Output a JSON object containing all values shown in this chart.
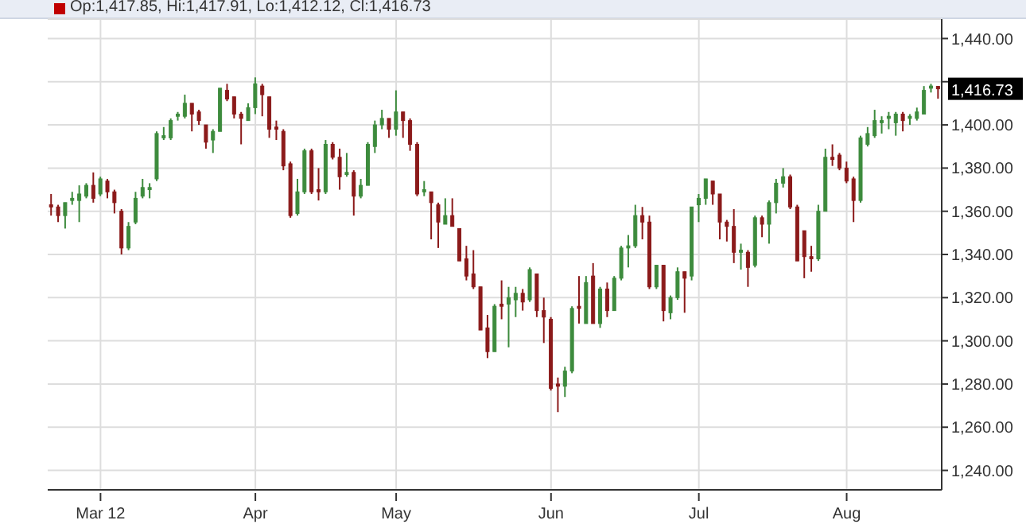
{
  "chart_data": {
    "type": "candlestick",
    "title": "Op:1,417.85, Hi:1,417.91, Lo:1,412.12, Cl:1,416.73",
    "categories": [
      null,
      null,
      null,
      null,
      null,
      null,
      null,
      "Mar 12",
      null,
      null,
      null,
      null,
      null,
      null,
      null,
      null,
      null,
      null,
      null,
      null,
      null,
      null,
      null,
      null,
      null,
      null,
      null,
      null,
      null,
      "Apr",
      null,
      null,
      null,
      null,
      null,
      null,
      null,
      null,
      null,
      null,
      null,
      null,
      null,
      null,
      null,
      null,
      null,
      null,
      null,
      "May",
      null,
      null,
      null,
      null,
      null,
      null,
      null,
      null,
      null,
      null,
      null,
      null,
      null,
      null,
      null,
      null,
      null,
      null,
      null,
      null,
      null,
      "Jun",
      null,
      null,
      null,
      null,
      null,
      null,
      null,
      null,
      null,
      null,
      null,
      null,
      null,
      null,
      null,
      null,
      null,
      null,
      null,
      null,
      "Jul",
      null,
      null,
      null,
      null,
      null,
      null,
      null,
      null,
      null,
      null,
      null,
      null,
      null,
      null,
      null,
      null,
      null,
      null,
      null,
      null,
      "Aug",
      null,
      null,
      null,
      null,
      null,
      null,
      null,
      null,
      null,
      null,
      null,
      null,
      null
    ],
    "ohlc": [
      [
        1363,
        1368,
        1358,
        1362
      ],
      [
        1362,
        1363,
        1355,
        1358
      ],
      [
        1358,
        1364,
        1352,
        1364
      ],
      [
        1365,
        1369,
        1363,
        1366
      ],
      [
        1365,
        1372,
        1355,
        1368
      ],
      [
        1367,
        1373,
        1366,
        1372
      ],
      [
        1372,
        1378,
        1364,
        1366
      ],
      [
        1368,
        1376,
        1367,
        1375
      ],
      [
        1374,
        1375,
        1366,
        1369
      ],
      [
        1369,
        1370,
        1359,
        1364
      ],
      [
        1360,
        1361,
        1340,
        1343
      ],
      [
        1343,
        1355,
        1342,
        1353
      ],
      [
        1355,
        1369,
        1354,
        1366
      ],
      [
        1367,
        1375,
        1366,
        1371
      ],
      [
        1370,
        1373,
        1366,
        1371
      ],
      [
        1375,
        1397,
        1374,
        1396
      ],
      [
        1394,
        1399,
        1393,
        1395
      ],
      [
        1394,
        1403,
        1393,
        1402
      ],
      [
        1404,
        1406,
        1402,
        1405
      ],
      [
        1404,
        1414,
        1403,
        1410
      ],
      [
        1410,
        1410,
        1397,
        1405
      ],
      [
        1406,
        1407,
        1400,
        1402
      ],
      [
        1400,
        1400,
        1389,
        1392
      ],
      [
        1393,
        1398,
        1387,
        1397
      ],
      [
        1397,
        1417,
        1397,
        1417
      ],
      [
        1416,
        1419,
        1411,
        1412
      ],
      [
        1413,
        1413,
        1403,
        1405
      ],
      [
        1405,
        1406,
        1391,
        1403
      ],
      [
        1402,
        1410,
        1402,
        1408
      ],
      [
        1408,
        1422,
        1405,
        1419
      ],
      [
        1418,
        1419,
        1404,
        1414
      ],
      [
        1413,
        1413,
        1394,
        1398
      ],
      [
        1399,
        1402,
        1393,
        1398
      ],
      [
        1397,
        1398,
        1379,
        1381
      ],
      [
        1382,
        1383,
        1357,
        1358
      ],
      [
        1359,
        1375,
        1358,
        1369
      ],
      [
        1369,
        1389,
        1368,
        1388
      ],
      [
        1388,
        1389,
        1368,
        1369
      ],
      [
        1370,
        1380,
        1365,
        1369
      ],
      [
        1369,
        1393,
        1368,
        1391
      ],
      [
        1391,
        1392,
        1384,
        1385
      ],
      [
        1385,
        1389,
        1370,
        1376
      ],
      [
        1377,
        1387,
        1376,
        1378
      ],
      [
        1378,
        1379,
        1358,
        1367
      ],
      [
        1367,
        1375,
        1366,
        1372
      ],
      [
        1372,
        1392,
        1372,
        1391
      ],
      [
        1390,
        1402,
        1387,
        1400
      ],
      [
        1400,
        1407,
        1398,
        1403
      ],
      [
        1403,
        1403,
        1394,
        1398
      ],
      [
        1398,
        1416,
        1395,
        1406
      ],
      [
        1406,
        1406,
        1394,
        1402
      ],
      [
        1402,
        1403,
        1388,
        1391
      ],
      [
        1391,
        1392,
        1367,
        1368
      ],
      [
        1369,
        1374,
        1367,
        1370
      ],
      [
        1369,
        1369,
        1347,
        1364
      ],
      [
        1363,
        1364,
        1343,
        1355
      ],
      [
        1354,
        1366,
        1354,
        1358
      ],
      [
        1358,
        1366,
        1353,
        1353
      ],
      [
        1352,
        1352,
        1337,
        1337
      ],
      [
        1338,
        1344,
        1328,
        1330
      ],
      [
        1331,
        1342,
        1324,
        1325
      ],
      [
        1325,
        1325,
        1305,
        1305
      ],
      [
        1306,
        1312,
        1292,
        1295
      ],
      [
        1295,
        1317,
        1295,
        1316
      ],
      [
        1317,
        1328,
        1310,
        1316
      ],
      [
        1317,
        1325,
        1297,
        1320
      ],
      [
        1319,
        1325,
        1311,
        1322
      ],
      [
        1322,
        1324,
        1314,
        1318
      ],
      [
        1319,
        1334,
        1318,
        1333
      ],
      [
        1331,
        1331,
        1311,
        1314
      ],
      [
        1314,
        1320,
        1299,
        1311
      ],
      [
        1310,
        1311,
        1277,
        1278
      ],
      [
        1280,
        1283,
        1267,
        1279
      ],
      [
        1279,
        1288,
        1274,
        1286
      ],
      [
        1286,
        1316,
        1285,
        1315
      ],
      [
        1316,
        1330,
        1308,
        1315
      ],
      [
        1308,
        1330,
        1308,
        1327
      ],
      [
        1330,
        1336,
        1308,
        1308
      ],
      [
        1308,
        1325,
        1306,
        1324
      ],
      [
        1324,
        1327,
        1311,
        1314
      ],
      [
        1314,
        1330,
        1314,
        1329
      ],
      [
        1329,
        1344,
        1328,
        1343
      ],
      [
        1343,
        1349,
        1334,
        1344
      ],
      [
        1344,
        1363,
        1343,
        1358
      ],
      [
        1358,
        1362,
        1347,
        1355
      ],
      [
        1355,
        1358,
        1324,
        1325
      ],
      [
        1325,
        1335,
        1324,
        1335
      ],
      [
        1335,
        1335,
        1309,
        1314
      ],
      [
        1313,
        1321,
        1310,
        1320
      ],
      [
        1320,
        1334,
        1319,
        1332
      ],
      [
        1332,
        1332,
        1313,
        1329
      ],
      [
        1330,
        1362,
        1328,
        1362
      ],
      [
        1363,
        1368,
        1355,
        1366
      ],
      [
        1366,
        1375,
        1363,
        1375
      ],
      [
        1374,
        1374,
        1363,
        1368
      ],
      [
        1368,
        1368,
        1347,
        1355
      ],
      [
        1355,
        1356,
        1346,
        1353
      ],
      [
        1353,
        1361,
        1336,
        1341
      ],
      [
        1341,
        1345,
        1333,
        1342
      ],
      [
        1341,
        1342,
        1325,
        1334
      ],
      [
        1335,
        1358,
        1334,
        1357
      ],
      [
        1357,
        1358,
        1348,
        1354
      ],
      [
        1354,
        1365,
        1345,
        1364
      ],
      [
        1364,
        1375,
        1359,
        1373
      ],
      [
        1373,
        1380,
        1371,
        1376
      ],
      [
        1376,
        1377,
        1361,
        1362
      ],
      [
        1362,
        1363,
        1337,
        1337
      ],
      [
        1351,
        1351,
        1329,
        1339
      ],
      [
        1339,
        1344,
        1332,
        1338
      ],
      [
        1338,
        1363,
        1337,
        1360
      ],
      [
        1360,
        1389,
        1360,
        1385
      ],
      [
        1385,
        1391,
        1381,
        1384
      ],
      [
        1386,
        1387,
        1379,
        1380
      ],
      [
        1380,
        1383,
        1373,
        1374
      ],
      [
        1375,
        1376,
        1355,
        1365
      ],
      [
        1365,
        1395,
        1364,
        1394
      ],
      [
        1391,
        1399,
        1390,
        1396
      ],
      [
        1395,
        1407,
        1394,
        1402
      ],
      [
        1401,
        1404,
        1396,
        1402
      ],
      [
        1403,
        1406,
        1398,
        1404
      ],
      [
        1401,
        1406,
        1395,
        1405
      ],
      [
        1405,
        1406,
        1397,
        1402
      ],
      [
        1403,
        1405,
        1400,
        1404
      ],
      [
        1403,
        1408,
        1402,
        1406
      ],
      [
        1405,
        1418,
        1405,
        1416
      ],
      [
        1417,
        1419,
        1415,
        1418
      ],
      [
        1417.85,
        1417.91,
        1412.12,
        1416.73
      ]
    ],
    "colors": [
      "#8b1a1a",
      "#8b1a1a",
      "#3d8b3d",
      "#3d8b3d",
      "#3d8b3d",
      "#3d8b3d",
      "#8b1a1a",
      "#3d8b3d",
      "#8b1a1a",
      "#8b1a1a",
      "#8b1a1a",
      "#3d8b3d",
      "#3d8b3d",
      "#3d8b3d",
      "#3d8b3d",
      "#3d8b3d",
      "#3d8b3d",
      "#3d8b3d",
      "#3d8b3d",
      "#3d8b3d",
      "#8b1a1a",
      "#8b1a1a",
      "#8b1a1a",
      "#3d8b3d",
      "#3d8b3d",
      "#8b1a1a",
      "#8b1a1a",
      "#8b1a1a",
      "#3d8b3d",
      "#3d8b3d",
      "#8b1a1a",
      "#8b1a1a",
      "#8b1a1a",
      "#8b1a1a",
      "#8b1a1a",
      "#3d8b3d",
      "#3d8b3d",
      "#8b1a1a",
      "#8b1a1a",
      "#3d8b3d",
      "#8b1a1a",
      "#8b1a1a",
      "#3d8b3d",
      "#8b1a1a",
      "#3d8b3d",
      "#3d8b3d",
      "#3d8b3d",
      "#3d8b3d",
      "#8b1a1a",
      "#3d8b3d",
      "#8b1a1a",
      "#8b1a1a",
      "#8b1a1a",
      "#3d8b3d",
      "#8b1a1a",
      "#8b1a1a",
      "#3d8b3d",
      "#8b1a1a",
      "#8b1a1a",
      "#8b1a1a",
      "#8b1a1a",
      "#8b1a1a",
      "#8b1a1a",
      "#3d8b3d",
      "#8b1a1a",
      "#3d8b3d",
      "#3d8b3d",
      "#8b1a1a",
      "#3d8b3d",
      "#8b1a1a",
      "#8b1a1a",
      "#8b1a1a",
      "#8b1a1a",
      "#3d8b3d",
      "#3d8b3d",
      "#8b1a1a",
      "#3d8b3d",
      "#8b1a1a",
      "#3d8b3d",
      "#8b1a1a",
      "#3d8b3d",
      "#3d8b3d",
      "#3d8b3d",
      "#3d8b3d",
      "#8b1a1a",
      "#8b1a1a",
      "#3d8b3d",
      "#8b1a1a",
      "#3d8b3d",
      "#3d8b3d",
      "#8b1a1a",
      "#3d8b3d",
      "#3d8b3d",
      "#3d8b3d",
      "#8b1a1a",
      "#8b1a1a",
      "#8b1a1a",
      "#8b1a1a",
      "#3d8b3d",
      "#8b1a1a",
      "#3d8b3d",
      "#8b1a1a",
      "#3d8b3d",
      "#3d8b3d",
      "#3d8b3d",
      "#8b1a1a",
      "#8b1a1a",
      "#8b1a1a",
      "#8b1a1a",
      "#3d8b3d",
      "#3d8b3d",
      "#8b1a1a",
      "#8b1a1a",
      "#8b1a1a",
      "#8b1a1a",
      "#3d8b3d",
      "#3d8b3d",
      "#3d8b3d",
      "#3d8b3d",
      "#3d8b3d",
      "#3d8b3d",
      "#8b1a1a",
      "#3d8b3d",
      "#3d8b3d",
      "#3d8b3d",
      "#3d8b3d",
      "#8b1a1a"
    ],
    "ylim": [
      1231,
      1449
    ],
    "yticks": [
      {
        "value": 1240,
        "label": "1,240.00"
      },
      {
        "value": 1260,
        "label": "1,260.00"
      },
      {
        "value": 1280,
        "label": "1,280.00"
      },
      {
        "value": 1300,
        "label": "1,300.00"
      },
      {
        "value": 1320,
        "label": "1,320.00"
      },
      {
        "value": 1340,
        "label": "1,340.00"
      },
      {
        "value": 1360,
        "label": "1,360.00"
      },
      {
        "value": 1380,
        "label": "1,380.00"
      },
      {
        "value": 1400,
        "label": "1,400.00"
      },
      {
        "value": 1420,
        "label": null
      },
      {
        "value": 1440,
        "label": "1,440.00"
      }
    ],
    "grid": true,
    "annotations": [
      "1,416.73"
    ]
  }
}
